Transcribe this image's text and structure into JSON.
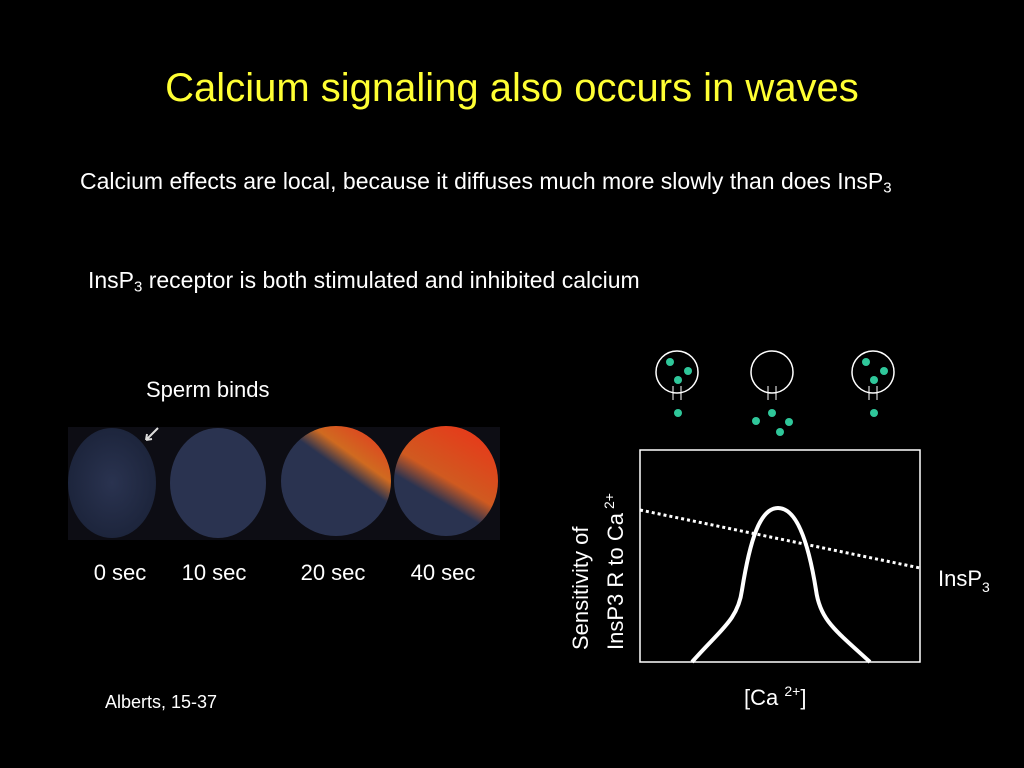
{
  "title": "Calcium signaling also occurs in waves",
  "bullets": [
    {
      "parts": [
        "Calcium effects are local, because it diffuses much more slowly than does InsP",
        "3"
      ]
    },
    {
      "parts": [
        "InsP",
        "3",
        " receptor is both stimulated and inhibited calcium"
      ]
    }
  ],
  "figure": {
    "caption": "Sperm binds",
    "times": [
      "0 sec",
      "10 sec",
      "20 sec",
      "40 sec"
    ],
    "source": "Alberts, 15-37"
  },
  "graph": {
    "y_label": [
      "Sensitivity of",
      "InsP3 R to Ca",
      "2+"
    ],
    "x_label": [
      "[Ca ",
      "2+",
      "]"
    ],
    "curve_label": [
      "InsP",
      "3"
    ]
  }
}
